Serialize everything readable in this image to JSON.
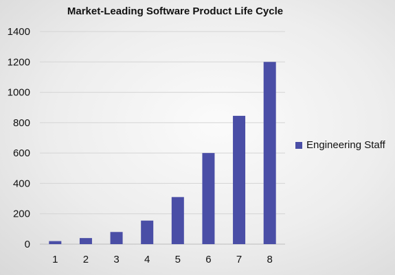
{
  "chart_data": {
    "type": "bar",
    "title": "Market-Leading Software Product Life Cycle",
    "categories": [
      "1",
      "2",
      "3",
      "4",
      "5",
      "6",
      "7",
      "8"
    ],
    "series": [
      {
        "name": "Engineering Staff",
        "values": [
          20,
          40,
          80,
          155,
          310,
          600,
          845,
          1200
        ]
      }
    ],
    "xlabel": "",
    "ylabel": "",
    "ylim": [
      0,
      1400
    ],
    "yticks": [
      0,
      200,
      400,
      600,
      800,
      1000,
      1200,
      1400
    ],
    "grid": true,
    "legend": "right",
    "colors": {
      "bar": "#4a4ea6",
      "grid": "#d4d4d4"
    }
  }
}
